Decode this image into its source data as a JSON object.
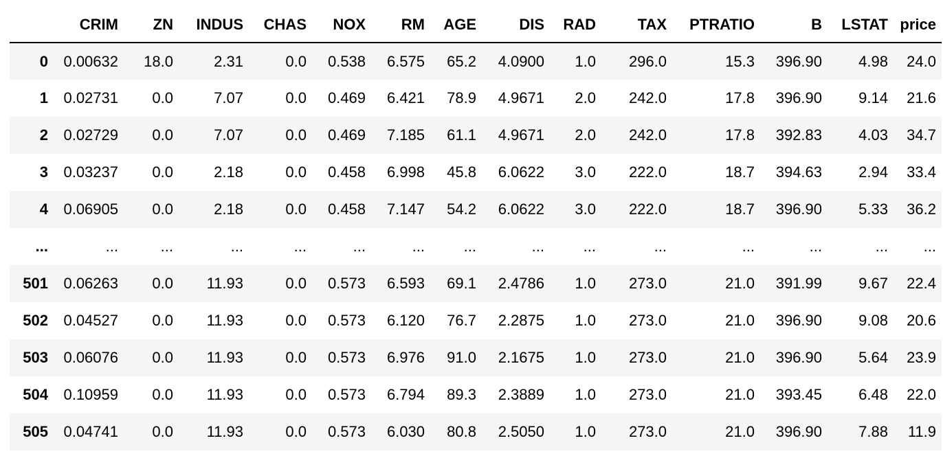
{
  "dataframe": {
    "columns": [
      "CRIM",
      "ZN",
      "INDUS",
      "CHAS",
      "NOX",
      "RM",
      "AGE",
      "DIS",
      "RAD",
      "TAX",
      "PTRATIO",
      "B",
      "LSTAT",
      "price"
    ],
    "rows": [
      {
        "index": "0",
        "values": [
          "0.00632",
          "18.0",
          "2.31",
          "0.0",
          "0.538",
          "6.575",
          "65.2",
          "4.0900",
          "1.0",
          "296.0",
          "15.3",
          "396.90",
          "4.98",
          "24.0"
        ]
      },
      {
        "index": "1",
        "values": [
          "0.02731",
          "0.0",
          "7.07",
          "0.0",
          "0.469",
          "6.421",
          "78.9",
          "4.9671",
          "2.0",
          "242.0",
          "17.8",
          "396.90",
          "9.14",
          "21.6"
        ]
      },
      {
        "index": "2",
        "values": [
          "0.02729",
          "0.0",
          "7.07",
          "0.0",
          "0.469",
          "7.185",
          "61.1",
          "4.9671",
          "2.0",
          "242.0",
          "17.8",
          "392.83",
          "4.03",
          "34.7"
        ]
      },
      {
        "index": "3",
        "values": [
          "0.03237",
          "0.0",
          "2.18",
          "0.0",
          "0.458",
          "6.998",
          "45.8",
          "6.0622",
          "3.0",
          "222.0",
          "18.7",
          "394.63",
          "2.94",
          "33.4"
        ]
      },
      {
        "index": "4",
        "values": [
          "0.06905",
          "0.0",
          "2.18",
          "0.0",
          "0.458",
          "7.147",
          "54.2",
          "6.0622",
          "3.0",
          "222.0",
          "18.7",
          "396.90",
          "5.33",
          "36.2"
        ]
      },
      {
        "index": "...",
        "values": [
          "...",
          "...",
          "...",
          "...",
          "...",
          "...",
          "...",
          "...",
          "...",
          "...",
          "...",
          "...",
          "...",
          "..."
        ]
      },
      {
        "index": "501",
        "values": [
          "0.06263",
          "0.0",
          "11.93",
          "0.0",
          "0.573",
          "6.593",
          "69.1",
          "2.4786",
          "1.0",
          "273.0",
          "21.0",
          "391.99",
          "9.67",
          "22.4"
        ]
      },
      {
        "index": "502",
        "values": [
          "0.04527",
          "0.0",
          "11.93",
          "0.0",
          "0.573",
          "6.120",
          "76.7",
          "2.2875",
          "1.0",
          "273.0",
          "21.0",
          "396.90",
          "9.08",
          "20.6"
        ]
      },
      {
        "index": "503",
        "values": [
          "0.06076",
          "0.0",
          "11.93",
          "0.0",
          "0.573",
          "6.976",
          "91.0",
          "2.1675",
          "1.0",
          "273.0",
          "21.0",
          "396.90",
          "5.64",
          "23.9"
        ]
      },
      {
        "index": "504",
        "values": [
          "0.10959",
          "0.0",
          "11.93",
          "0.0",
          "0.573",
          "6.794",
          "89.3",
          "2.3889",
          "1.0",
          "273.0",
          "21.0",
          "393.45",
          "6.48",
          "22.0"
        ]
      },
      {
        "index": "505",
        "values": [
          "0.04741",
          "0.0",
          "11.93",
          "0.0",
          "0.573",
          "6.030",
          "80.8",
          "2.5050",
          "1.0",
          "273.0",
          "21.0",
          "396.90",
          "7.88",
          "11.9"
        ]
      }
    ]
  },
  "colors": {
    "stripe": "#f5f5f5",
    "background": "#ffffff",
    "header_rule": "#000000",
    "text": "#000000"
  }
}
